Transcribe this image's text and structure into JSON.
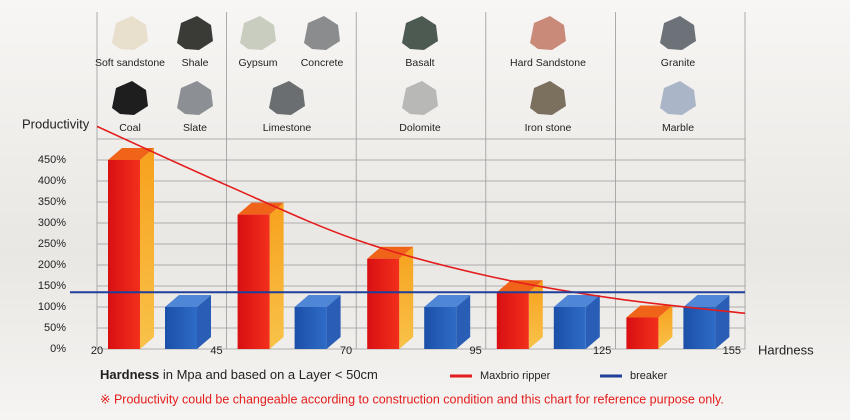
{
  "chart_data": {
    "type": "bar",
    "y_label": "Productivity",
    "x_label": "Hardness",
    "ylim": [
      0,
      500
    ],
    "yticks": [
      {
        "value": 0,
        "label": "0%"
      },
      {
        "value": 50,
        "label": "50%"
      },
      {
        "value": 100,
        "label": "100%"
      },
      {
        "value": 150,
        "label": "150%"
      },
      {
        "value": 200,
        "label": "200%"
      },
      {
        "value": 250,
        "label": "250%"
      },
      {
        "value": 300,
        "label": "300%"
      },
      {
        "value": 350,
        "label": "350%"
      },
      {
        "value": 400,
        "label": "400%"
      },
      {
        "value": 450,
        "label": "450%"
      }
    ],
    "band_edges": [
      20,
      45,
      70,
      95,
      125,
      155
    ],
    "grid": true,
    "rocks": [
      [
        "Soft sandstone",
        "Shale",
        "Coal",
        "Slate"
      ],
      [
        "Gypsum",
        "Concrete",
        "Limestone"
      ],
      [
        "Basalt",
        "Dolomite"
      ],
      [
        "Hard Sandstone",
        "Iron stone"
      ],
      [
        "Granite",
        "Marble"
      ]
    ],
    "series": [
      {
        "name": "Maxbrio ripper",
        "color": "#e31c1c",
        "values": [
          450,
          320,
          215,
          135,
          75
        ],
        "line": [
          530,
          390,
          260,
          175,
          120,
          85
        ]
      },
      {
        "name": "breaker",
        "color": "#1f3f9a",
        "values": [
          100,
          100,
          100,
          100,
          100
        ],
        "line": [
          135,
          135,
          135,
          135,
          135,
          135
        ]
      }
    ],
    "note_bold": "Hardness",
    "note": "in Mpa and based on a Layer < 50cm",
    "disclaimer": "※ Productivity could be changeable according to construction condition and this chart for reference purpose only."
  }
}
